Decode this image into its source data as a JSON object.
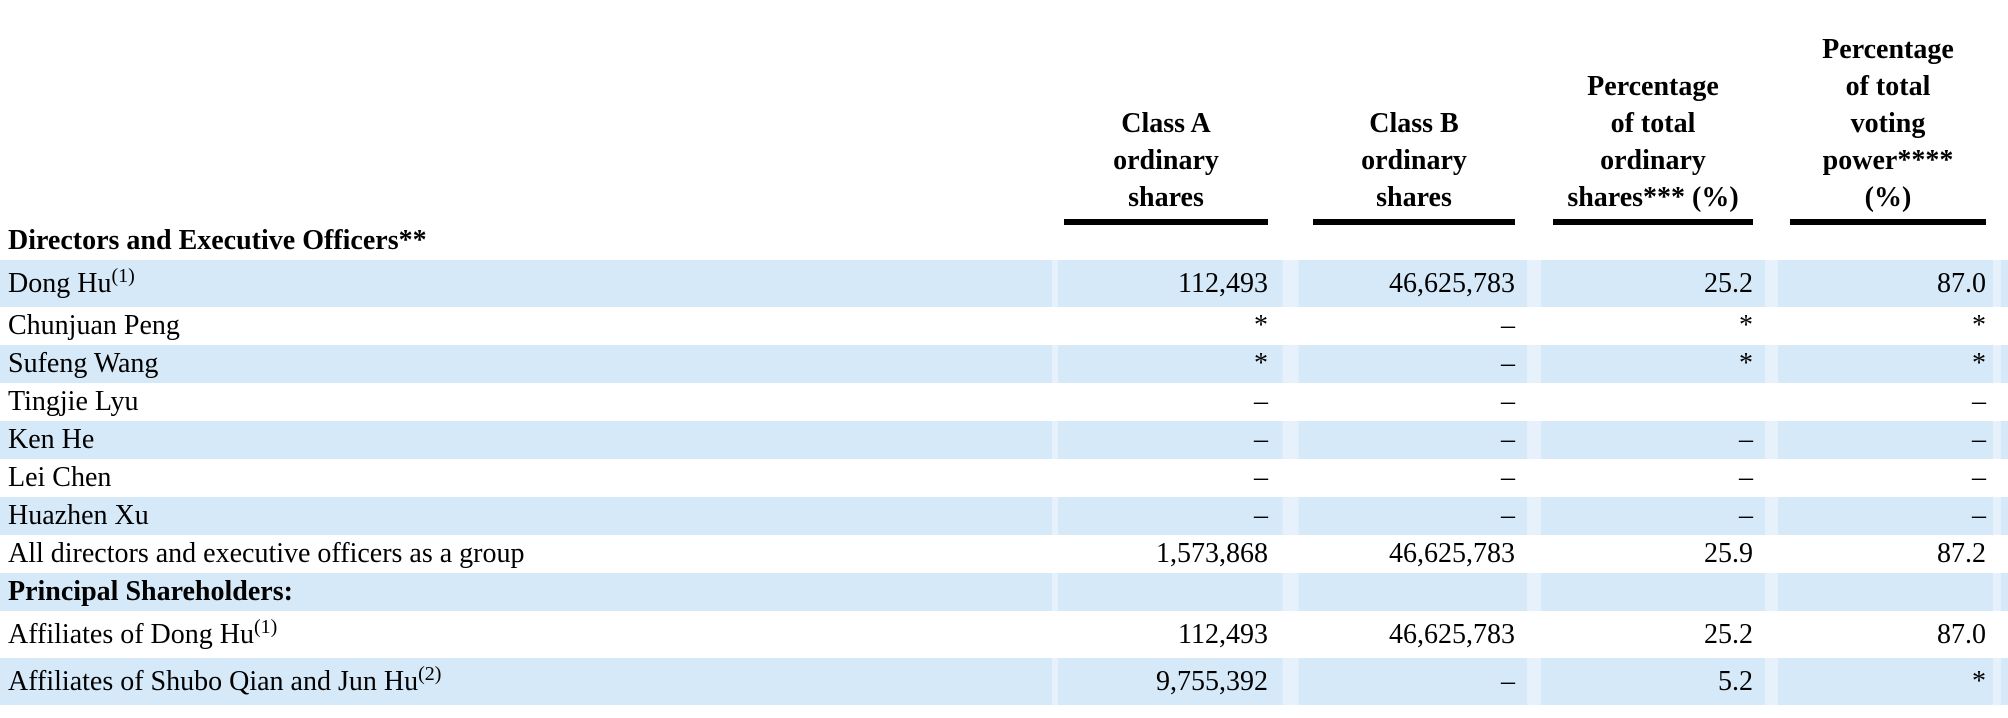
{
  "colors": {
    "stripe": "#d6e9f8",
    "stripe_gap": "#e6f1fb",
    "text": "#000000",
    "rule": "#000000"
  },
  "table": {
    "columns": [
      {
        "id": "class-a-ordinary-shares",
        "label_lines": [
          "Class A",
          "ordinary",
          "shares"
        ]
      },
      {
        "id": "class-b-ordinary-shares",
        "label_lines": [
          "Class B",
          "ordinary",
          "shares"
        ]
      },
      {
        "id": "percentage-total-ordinary-shares",
        "label_lines": [
          "Percentage",
          "of total",
          "ordinary",
          "shares*** (%)"
        ]
      },
      {
        "id": "percentage-total-voting-power",
        "label_lines": [
          "Percentage",
          "of total",
          "voting",
          "power****",
          "(%)"
        ]
      }
    ],
    "rows": [
      {
        "kind": "section",
        "stripe": false,
        "name": "Directors and Executive Officers**",
        "sup": "",
        "values": [
          "",
          "",
          "",
          ""
        ]
      },
      {
        "kind": "data",
        "stripe": true,
        "name": "Dong Hu",
        "sup": "(1)",
        "values": [
          "112,493",
          "46,625,783",
          "25.2",
          "87.0"
        ]
      },
      {
        "kind": "data",
        "stripe": false,
        "name": "Chunjuan Peng",
        "sup": "",
        "values": [
          "*",
          "–",
          "*",
          "*"
        ]
      },
      {
        "kind": "data",
        "stripe": true,
        "name": "Sufeng Wang",
        "sup": "",
        "values": [
          "*",
          "–",
          "*",
          "*"
        ]
      },
      {
        "kind": "data",
        "stripe": false,
        "name": "Tingjie Lyu",
        "sup": "",
        "values": [
          "–",
          "–",
          "",
          "–"
        ]
      },
      {
        "kind": "data",
        "stripe": true,
        "name": "Ken He",
        "sup": "",
        "values": [
          "–",
          "–",
          "–",
          "–"
        ]
      },
      {
        "kind": "data",
        "stripe": false,
        "name": "Lei Chen",
        "sup": "",
        "values": [
          "–",
          "–",
          "–",
          "–"
        ]
      },
      {
        "kind": "data",
        "stripe": true,
        "name": "Huazhen Xu",
        "sup": "",
        "values": [
          "–",
          "–",
          "–",
          "–"
        ]
      },
      {
        "kind": "data",
        "stripe": false,
        "name": "All directors and executive officers as a group",
        "sup": "",
        "values": [
          "1,573,868",
          "46,625,783",
          "25.9",
          "87.2"
        ]
      },
      {
        "kind": "section",
        "stripe": true,
        "name": "Principal Shareholders:",
        "sup": "",
        "values": [
          "",
          "",
          "",
          ""
        ]
      },
      {
        "kind": "data",
        "stripe": false,
        "name": "Affiliates of Dong Hu",
        "sup": "(1)",
        "values": [
          "112,493",
          "46,625,783",
          "25.2",
          "87.0"
        ]
      },
      {
        "kind": "data",
        "stripe": true,
        "name": "Affiliates of Shubo Qian and Jun Hu",
        "sup": "(2)",
        "values": [
          "9,755,392",
          "–",
          "5.2",
          "*"
        ]
      }
    ]
  }
}
